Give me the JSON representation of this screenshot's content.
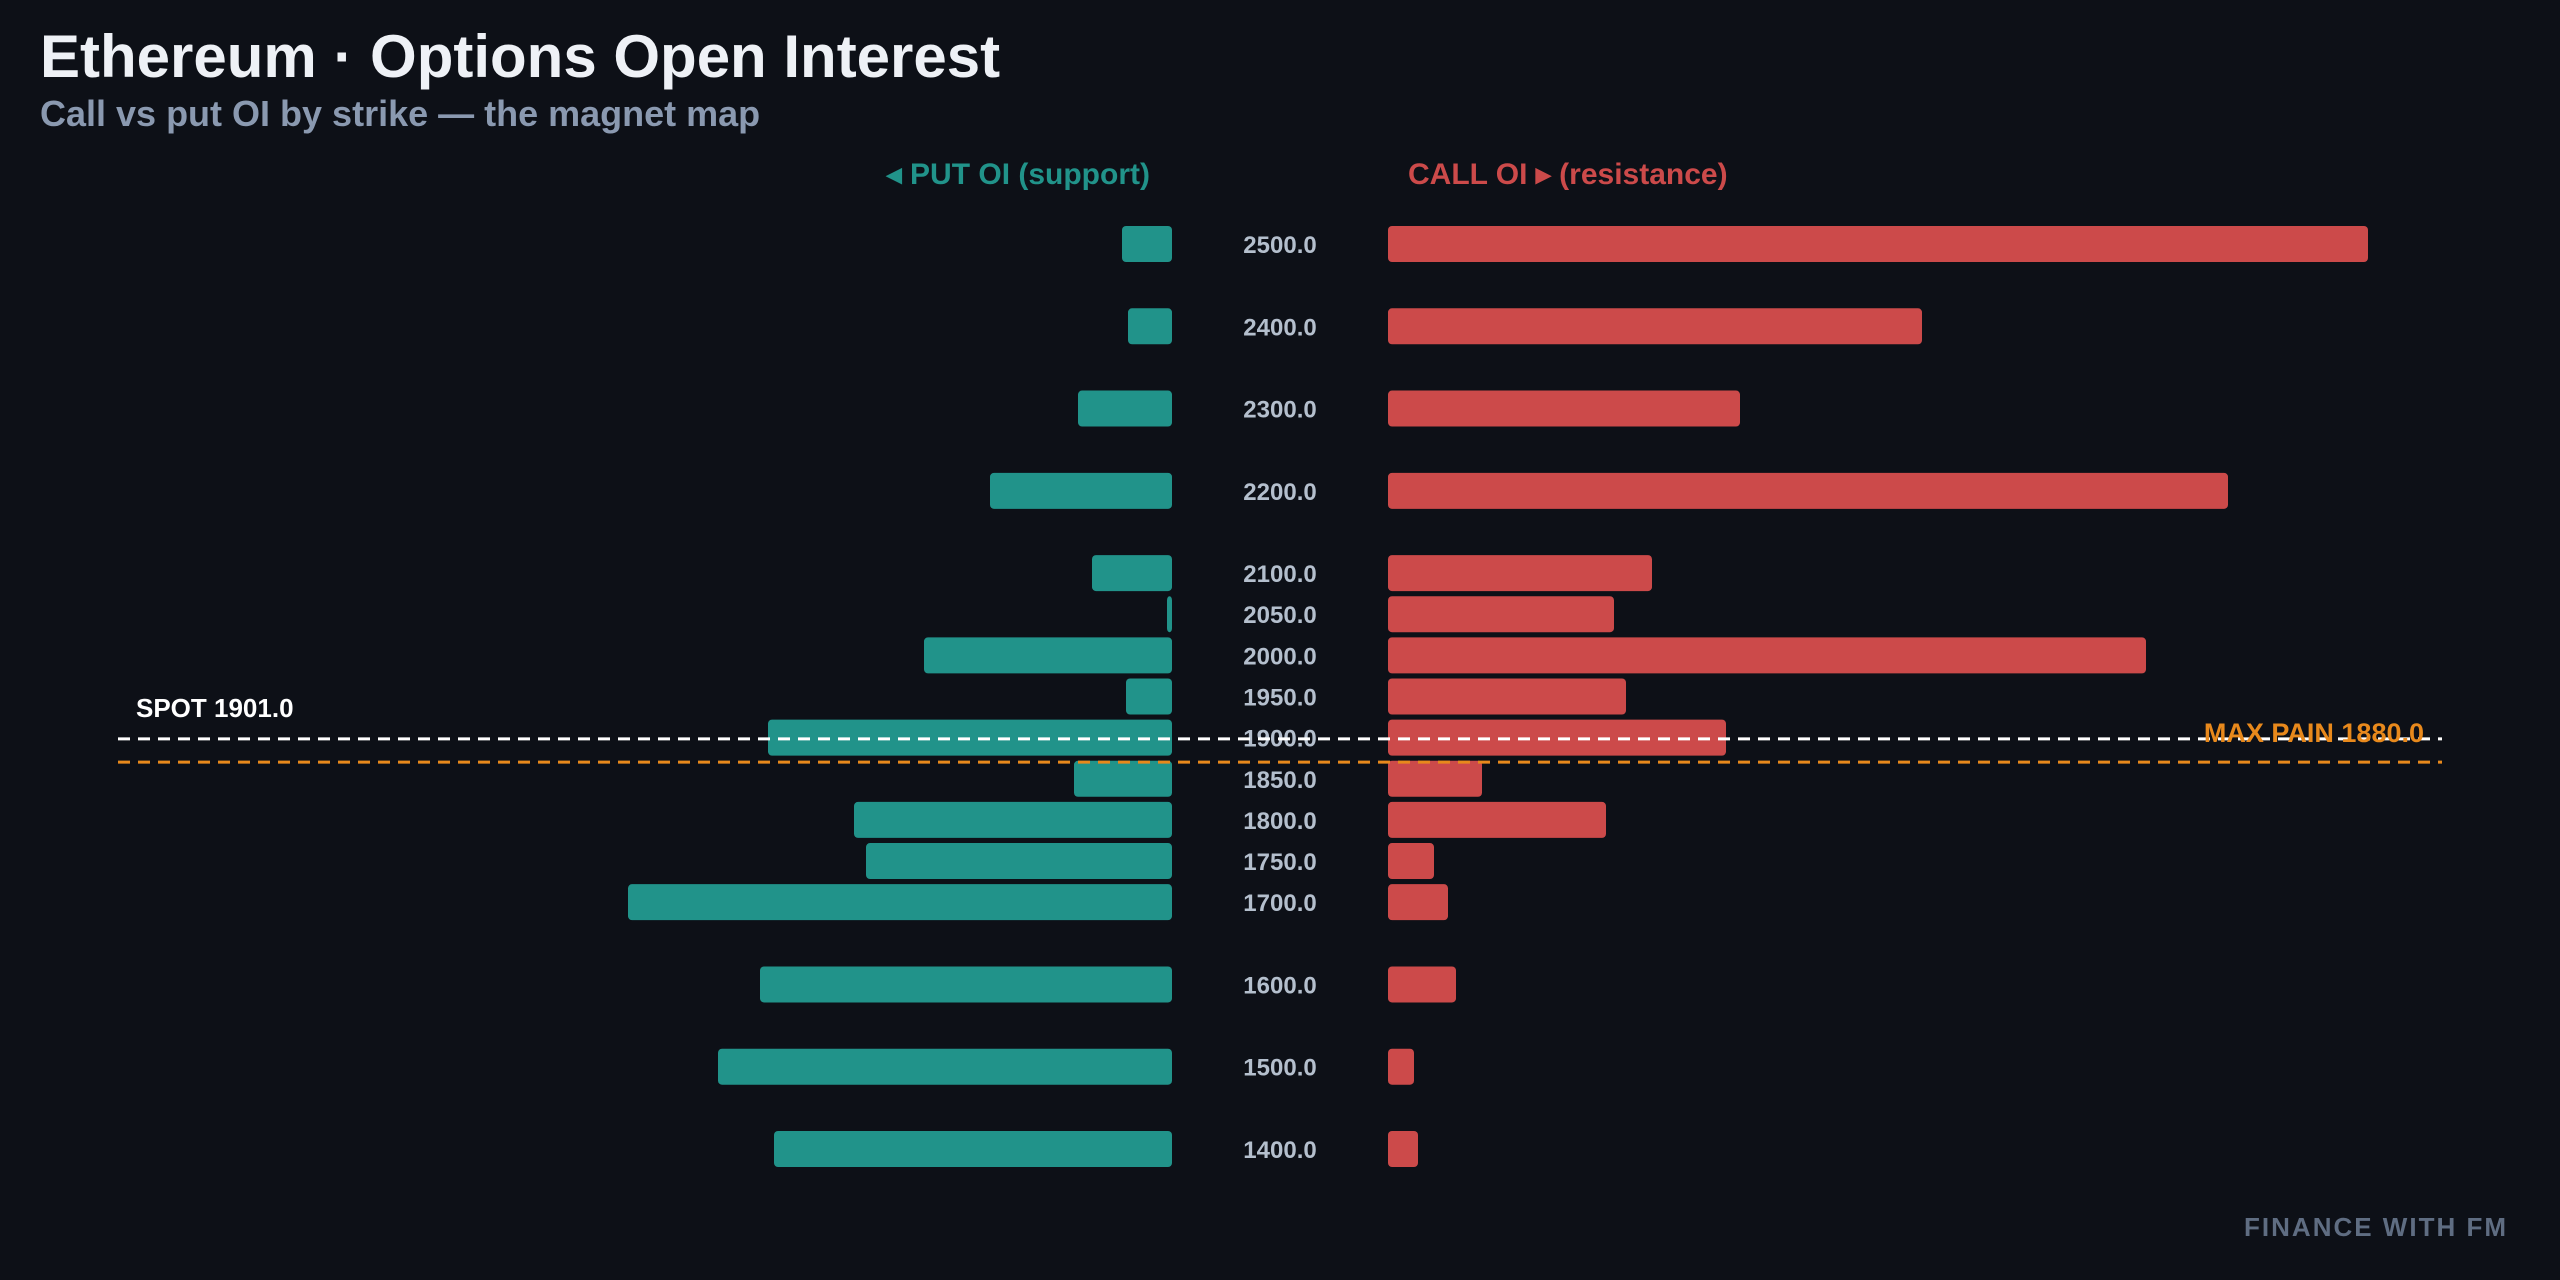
{
  "header": {
    "title": "Ethereum · Options Open Interest",
    "subtitle": "Call vs put OI by strike — the magnet map"
  },
  "watermark": "FINANCE WITH FM",
  "colors": {
    "background": "#0d1017",
    "put": "#21938a",
    "call": "#cc4a4a",
    "spot_line": "#ffffff",
    "max_pain": "#e8891c",
    "strike_label": "#b4bfcd"
  },
  "chart_data": {
    "type": "bar",
    "orientation": "horizontal-butterfly",
    "put_header": "◂ PUT OI (support)",
    "call_header": "CALL OI ▸ (resistance)",
    "strikes": [
      2500.0,
      2400.0,
      2300.0,
      2200.0,
      2100.0,
      2050.0,
      2000.0,
      1950.0,
      1900.0,
      1850.0,
      1800.0,
      1750.0,
      1700.0,
      1600.0,
      1500.0,
      1400.0
    ],
    "strike_labels": [
      "2500.0",
      "2400.0",
      "2300.0",
      "2200.0",
      "2100.0",
      "2050.0",
      "2000.0",
      "1950.0",
      "1900.0",
      "1850.0",
      "1800.0",
      "1750.0",
      "1700.0",
      "1600.0",
      "1500.0",
      "1400.0"
    ],
    "series": [
      {
        "name": "PUT OI (support)",
        "values": [
          50,
          44,
          94,
          182,
          80,
          5,
          248,
          46,
          404,
          98,
          318,
          306,
          544,
          412,
          454,
          398
        ]
      },
      {
        "name": "CALL OI (resistance)",
        "values": [
          980,
          534,
          352,
          840,
          264,
          226,
          758,
          238,
          338,
          94,
          218,
          46,
          60,
          68,
          26,
          30
        ]
      }
    ],
    "reference_lines": {
      "spot": {
        "label": "SPOT 1901.0",
        "value": 1901.0
      },
      "max_pain": {
        "label": "MAX PAIN 1880.0",
        "value": 1880.0
      }
    }
  }
}
